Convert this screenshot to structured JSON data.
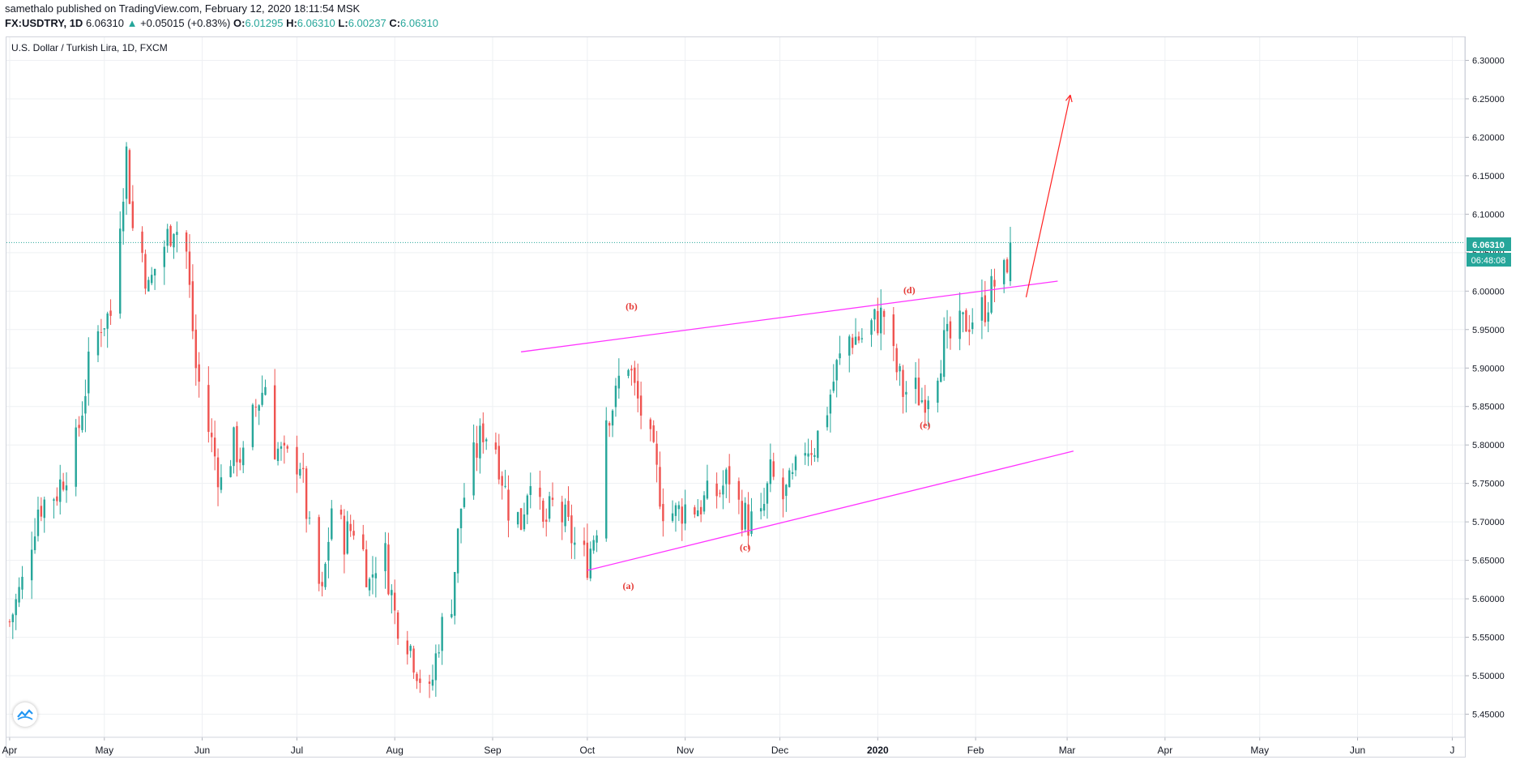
{
  "header": {
    "publisher": "samethalo",
    "published_text": "published on TradingView.com, February 12, 2020 18:11:54 MSK",
    "symbol": "FX:USDTRY, 1D",
    "last": "6.06310",
    "change_arrow": "▲",
    "change": "+0.05015 (+0.83%)",
    "open_label": "O:",
    "open": "6.01295",
    "high_label": "H:",
    "high": "6.06310",
    "low_label": "L:",
    "low": "6.00237",
    "close_label": "C:",
    "close": "6.06310"
  },
  "legend_title": "U.S. Dollar / Turkish Lira, 1D, FXCM",
  "price_badge": "6.06310",
  "time_badge": "06:48:08",
  "colors": {
    "up": "#26a69a",
    "down": "#ef5350",
    "trend": "#ff33ff",
    "arrow": "#ff2222",
    "label": "#e53935"
  },
  "chart_data": {
    "type": "candlestick",
    "title": "U.S. Dollar / Turkish Lira, 1D, FXCM",
    "x_range": [
      "2019-03-31",
      "2020-07-05"
    ],
    "ylim": [
      5.42,
      6.33
    ],
    "y_ticks": [
      5.45,
      5.5,
      5.55,
      5.6,
      5.65,
      5.7,
      5.75,
      5.8,
      5.85,
      5.9,
      5.95,
      6.0,
      6.05,
      6.1,
      6.15,
      6.2,
      6.25,
      6.3
    ],
    "x_ticks": [
      {
        "date": "2019-04-01",
        "label": "Apr"
      },
      {
        "date": "2019-05-01",
        "label": "May"
      },
      {
        "date": "2019-06-01",
        "label": "Jun"
      },
      {
        "date": "2019-07-01",
        "label": "Jul"
      },
      {
        "date": "2019-08-01",
        "label": "Aug"
      },
      {
        "date": "2019-09-01",
        "label": "Sep"
      },
      {
        "date": "2019-10-01",
        "label": "Oct"
      },
      {
        "date": "2019-11-01",
        "label": "Nov"
      },
      {
        "date": "2019-12-01",
        "label": "Dec"
      },
      {
        "date": "2020-01-01",
        "label": "2020"
      },
      {
        "date": "2020-02-01",
        "label": "Feb"
      },
      {
        "date": "2020-03-01",
        "label": "Mar"
      },
      {
        "date": "2020-04-01",
        "label": "Apr"
      },
      {
        "date": "2020-05-01",
        "label": "May"
      },
      {
        "date": "2020-06-01",
        "label": "Jun"
      },
      {
        "date": "2020-07-01",
        "label": "J"
      }
    ],
    "close_anchors": [
      [
        "2019-04-01",
        5.57
      ],
      [
        "2019-04-05",
        5.62
      ],
      [
        "2019-04-10",
        5.72
      ],
      [
        "2019-04-16",
        5.74
      ],
      [
        "2019-04-22",
        5.8
      ],
      [
        "2019-04-26",
        5.9
      ],
      [
        "2019-04-30",
        5.96
      ],
      [
        "2019-05-03",
        5.97
      ],
      [
        "2019-05-06",
        6.1
      ],
      [
        "2019-05-08",
        6.18
      ],
      [
        "2019-05-10",
        6.08
      ],
      [
        "2019-05-13",
        6.05
      ],
      [
        "2019-05-15",
        6.0
      ],
      [
        "2019-05-17",
        6.03
      ],
      [
        "2019-05-20",
        6.06
      ],
      [
        "2019-05-23",
        6.09
      ],
      [
        "2019-05-27",
        6.05
      ],
      [
        "2019-05-30",
        5.9
      ],
      [
        "2019-06-03",
        5.82
      ],
      [
        "2019-06-07",
        5.75
      ],
      [
        "2019-06-11",
        5.8
      ],
      [
        "2019-06-14",
        5.78
      ],
      [
        "2019-06-18",
        5.85
      ],
      [
        "2019-06-21",
        5.88
      ],
      [
        "2019-06-24",
        5.8
      ],
      [
        "2019-06-27",
        5.78
      ],
      [
        "2019-07-02",
        5.78
      ],
      [
        "2019-07-06",
        5.65
      ],
      [
        "2019-07-09",
        5.6
      ],
      [
        "2019-07-12",
        5.72
      ],
      [
        "2019-07-16",
        5.68
      ],
      [
        "2019-07-20",
        5.7
      ],
      [
        "2019-07-24",
        5.62
      ],
      [
        "2019-07-28",
        5.68
      ],
      [
        "2019-08-01",
        5.58
      ],
      [
        "2019-08-05",
        5.55
      ],
      [
        "2019-08-09",
        5.5
      ],
      [
        "2019-08-12",
        5.47
      ],
      [
        "2019-08-15",
        5.55
      ],
      [
        "2019-08-19",
        5.6
      ],
      [
        "2019-08-22",
        5.72
      ],
      [
        "2019-08-26",
        5.78
      ],
      [
        "2019-08-29",
        5.82
      ],
      [
        "2019-09-02",
        5.8
      ],
      [
        "2019-09-06",
        5.72
      ],
      [
        "2019-09-10",
        5.7
      ],
      [
        "2019-09-13",
        5.77
      ],
      [
        "2019-09-17",
        5.69
      ],
      [
        "2019-09-20",
        5.72
      ],
      [
        "2019-09-24",
        5.7
      ],
      [
        "2019-09-28",
        5.66
      ],
      [
        "2019-10-01",
        5.65
      ],
      [
        "2019-10-04",
        5.7
      ],
      [
        "2019-10-07",
        5.84
      ],
      [
        "2019-10-10",
        5.86
      ],
      [
        "2019-10-13",
        5.93
      ],
      [
        "2019-10-16",
        5.87
      ],
      [
        "2019-10-19",
        5.83
      ],
      [
        "2019-10-22",
        5.78
      ],
      [
        "2019-10-25",
        5.72
      ],
      [
        "2019-10-29",
        5.71
      ],
      [
        "2019-11-01",
        5.72
      ],
      [
        "2019-11-05",
        5.72
      ],
      [
        "2019-11-08",
        5.73
      ],
      [
        "2019-11-12",
        5.74
      ],
      [
        "2019-11-15",
        5.76
      ],
      [
        "2019-11-18",
        5.72
      ],
      [
        "2019-11-21",
        5.7
      ],
      [
        "2019-11-25",
        5.7
      ],
      [
        "2019-11-28",
        5.76
      ],
      [
        "2019-12-02",
        5.73
      ],
      [
        "2019-12-05",
        5.75
      ],
      [
        "2019-12-09",
        5.8
      ],
      [
        "2019-12-12",
        5.8
      ],
      [
        "2019-12-16",
        5.85
      ],
      [
        "2019-12-19",
        5.9
      ],
      [
        "2019-12-23",
        5.94
      ],
      [
        "2019-12-27",
        5.94
      ],
      [
        "2019-12-31",
        5.96
      ],
      [
        "2020-01-03",
        5.97
      ],
      [
        "2020-01-06",
        5.91
      ],
      [
        "2020-01-09",
        5.87
      ],
      [
        "2020-01-13",
        5.87
      ],
      [
        "2020-01-15",
        5.86
      ],
      [
        "2020-01-18",
        5.88
      ],
      [
        "2020-01-22",
        5.93
      ],
      [
        "2020-01-25",
        5.94
      ],
      [
        "2020-01-29",
        5.96
      ],
      [
        "2020-02-01",
        5.97
      ],
      [
        "2020-02-04",
        5.98
      ],
      [
        "2020-02-07",
        6.01
      ],
      [
        "2020-02-10",
        6.02
      ],
      [
        "2020-02-12",
        6.0631
      ]
    ],
    "trendlines": [
      {
        "from": [
          "2019-09-10",
          5.921
        ],
        "to": [
          "2020-02-27",
          6.013
        ]
      },
      {
        "from": [
          "2019-10-01",
          5.637
        ],
        "to": [
          "2020-03-03",
          5.792
        ]
      }
    ],
    "projection_arrow": {
      "from": [
        "2020-02-17",
        5.992
      ],
      "to": [
        "2020-03-02",
        6.255
      ]
    },
    "wave_labels": [
      {
        "text": "(a)",
        "date": "2019-10-14",
        "y": 5.613
      },
      {
        "text": "(b)",
        "date": "2019-10-15",
        "y": 5.976
      },
      {
        "text": "(c)",
        "date": "2019-11-20",
        "y": 5.663
      },
      {
        "text": "(d)",
        "date": "2020-01-11",
        "y": 5.997
      },
      {
        "text": "(e)",
        "date": "2020-01-16",
        "y": 5.822
      }
    ],
    "last_price": 6.0631
  }
}
